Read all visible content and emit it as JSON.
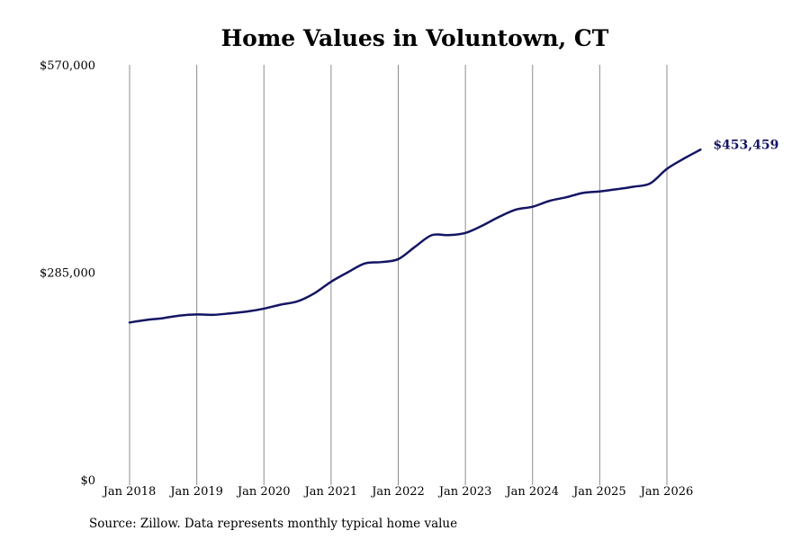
{
  "source_note": "Source: Zillow. Data represents monthly typical home value",
  "colors": {
    "line": "#141464",
    "gridline": "#8c8c8c",
    "text": "#000000"
  },
  "chart_data": {
    "type": "line",
    "title": "Home Values in Voluntown, CT",
    "xlabel": "",
    "ylabel": "",
    "ylim": [
      0,
      570000
    ],
    "yticks": [
      0,
      285000,
      570000
    ],
    "ytick_labels": [
      "$0",
      "$285,000",
      "$570,000"
    ],
    "xticks": [
      "2018-01",
      "2019-01",
      "2020-01",
      "2021-01",
      "2022-01",
      "2023-01",
      "2024-01",
      "2025-01",
      "2026-01"
    ],
    "xtick_labels": [
      "Jan 2018",
      "Jan 2019",
      "Jan 2020",
      "Jan 2021",
      "Jan 2022",
      "Jan 2023",
      "Jan 2024",
      "Jan 2025",
      "Jan 2026"
    ],
    "grid": "vertical",
    "end_label": "$453,459",
    "series": [
      {
        "x": [
          "2018-01",
          "2018-04",
          "2018-07",
          "2018-10",
          "2019-01",
          "2019-04",
          "2019-07",
          "2019-10",
          "2020-01",
          "2020-04",
          "2020-07",
          "2020-10",
          "2021-01",
          "2021-04",
          "2021-07",
          "2021-10",
          "2022-01",
          "2022-04",
          "2022-07",
          "2022-10",
          "2023-01",
          "2023-04",
          "2023-07",
          "2023-10",
          "2024-01",
          "2024-04",
          "2024-07",
          "2024-10",
          "2025-01",
          "2025-04",
          "2025-07",
          "2025-10",
          "2026-01",
          "2026-04",
          "2026-07"
        ],
        "values": [
          216000,
          219500,
          222000,
          225500,
          227000,
          226500,
          228500,
          231000,
          235000,
          240500,
          245000,
          256000,
          272000,
          285000,
          297000,
          299000,
          303000,
          320000,
          336000,
          336000,
          339000,
          349000,
          361000,
          371000,
          375000,
          383000,
          388000,
          394000,
          396000,
          399000,
          402500,
          407000,
          427000,
          441000,
          453459
        ]
      }
    ]
  }
}
